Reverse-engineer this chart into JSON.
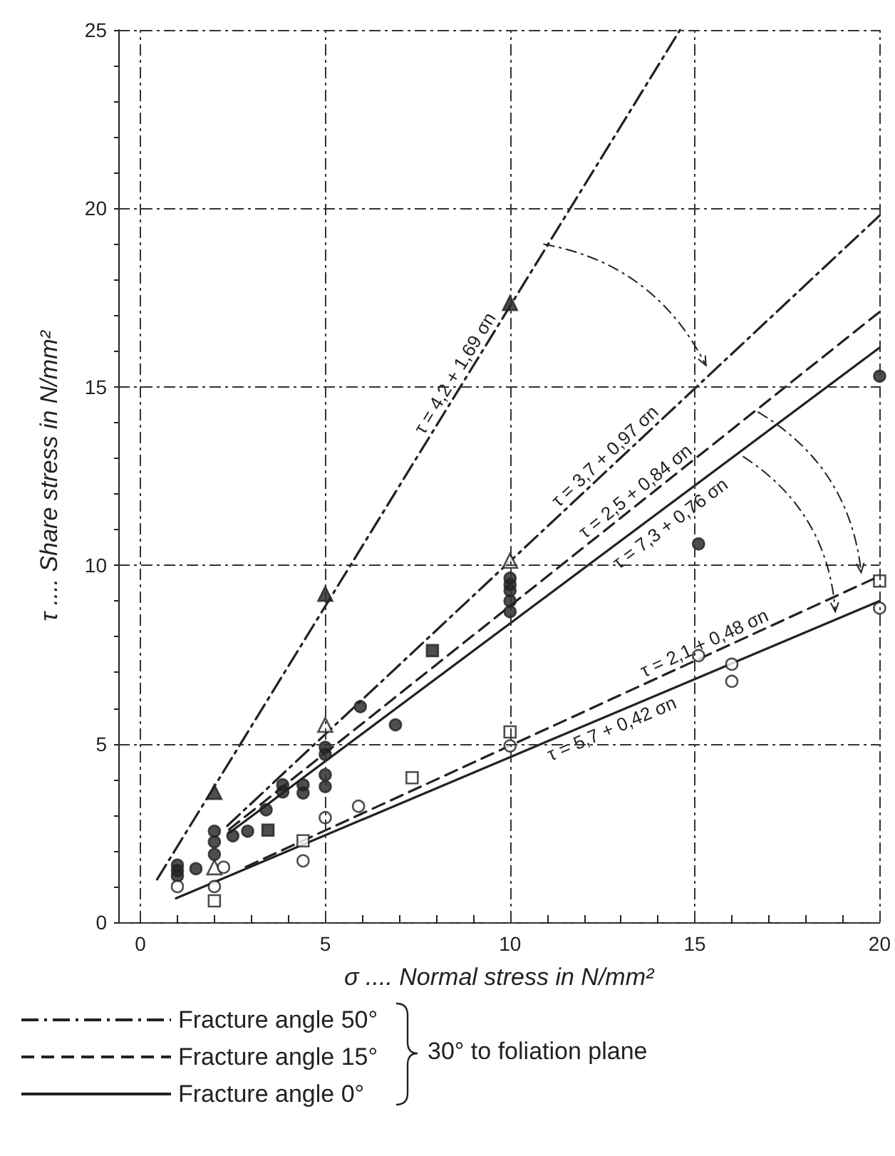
{
  "chart_data": {
    "type": "scatter",
    "xlabel": "σ .... Normal stress in N/mm²",
    "ylabel": "τ .... Share stress in N/mm²",
    "xlim": [
      -0.6,
      20
    ],
    "ylim": [
      0,
      25
    ],
    "xticks": [
      0,
      {
        "value": 1,
        "label": null
      },
      {
        "value": 2,
        "label": null
      },
      {
        "value": 3,
        "label": null
      },
      {
        "value": 4,
        "label": null
      },
      5,
      {
        "value": 6,
        "label": null
      },
      {
        "value": 7,
        "label": null
      },
      {
        "value": 8,
        "label": null
      },
      {
        "value": 9,
        "label": null
      },
      10,
      {
        "value": 11,
        "label": null
      },
      {
        "value": 12,
        "label": null
      },
      {
        "value": 13,
        "label": null
      },
      {
        "value": 14,
        "label": null
      },
      15,
      {
        "value": 16,
        "label": null
      },
      {
        "value": 17,
        "label": null
      },
      {
        "value": 18,
        "label": null
      },
      {
        "value": 19,
        "label": null
      },
      20
    ],
    "yticks": [
      0,
      {
        "value": 1,
        "label": null
      },
      {
        "value": 2,
        "label": null
      },
      {
        "value": 3,
        "label": null
      },
      {
        "value": 4,
        "label": null
      },
      5,
      {
        "value": 6,
        "label": null
      },
      {
        "value": 7,
        "label": null
      },
      {
        "value": 8,
        "label": null
      },
      {
        "value": 9,
        "label": null
      },
      10,
      {
        "value": 11,
        "label": null
      },
      {
        "value": 12,
        "label": null
      },
      {
        "value": 13,
        "label": null
      },
      {
        "value": 14,
        "label": null
      },
      15,
      {
        "value": 16,
        "label": null
      },
      {
        "value": 17,
        "label": null
      },
      {
        "value": 18,
        "label": null
      },
      {
        "value": 19,
        "label": null
      },
      20,
      {
        "value": 21,
        "label": null
      },
      {
        "value": 22,
        "label": null
      },
      {
        "value": 23,
        "label": null
      },
      {
        "value": 24,
        "label": null
      },
      25
    ],
    "grid": true,
    "legend": "bottom",
    "series": [
      {
        "type": "line",
        "name": "Fracture angle 50°",
        "color": "#222222",
        "line_style": "dashdot",
        "marker": "none",
        "x": [
          0.45,
          14.6
        ],
        "values": [
          1.2,
          25
        ]
      },
      {
        "type": "line",
        "color": "#222222",
        "line_style": "dashdot",
        "marker": "none",
        "x": [
          2.35,
          20
        ],
        "values": [
          2.7,
          19.8
        ]
      },
      {
        "type": "line",
        "name": "Fracture angle 15°",
        "color": "#222222",
        "line_style": "dashed",
        "marker": "none",
        "x": [
          2.4,
          20
        ],
        "values": [
          2.6,
          17.1
        ]
      },
      {
        "type": "line",
        "name": "Fracture angle 0°",
        "color": "#222222",
        "line_style": "solid",
        "marker": "none",
        "x": [
          2.4,
          20
        ],
        "values": [
          2.5,
          16.1
        ]
      },
      {
        "type": "line",
        "color": "#222222",
        "line_style": "dashed",
        "marker": "none",
        "x": [
          2.85,
          20
        ],
        "values": [
          1.55,
          9.7
        ]
      },
      {
        "type": "line",
        "color": "#222222",
        "line_style": "solid",
        "marker": "none",
        "x": [
          0.96,
          20
        ],
        "values": [
          0.67,
          9.0
        ]
      },
      {
        "color": "#222222",
        "marker": "triangle",
        "x": [
          2,
          5,
          10
        ],
        "values": [
          3.65,
          9.2,
          17.35
        ]
      },
      {
        "color": "#ffffff",
        "marker": "triangle",
        "x": [
          2,
          5,
          10
        ],
        "values": [
          1.54,
          5.53,
          10.13
        ]
      },
      {
        "color": "#222222",
        "marker": "circle",
        "x": [
          1,
          1,
          1,
          1.5,
          2,
          2,
          2,
          2.5,
          2.9,
          3.4,
          3.85,
          3.85,
          4.4,
          4.4,
          5,
          5,
          5,
          5,
          5.95,
          6.9,
          10,
          10,
          10,
          10,
          10,
          15.1,
          20
        ],
        "values": [
          1.6,
          1.45,
          1.3,
          1.5,
          2.55,
          2.25,
          1.9,
          2.42,
          2.55,
          3.15,
          3.85,
          3.65,
          3.85,
          3.62,
          4.9,
          4.7,
          4.13,
          3.8,
          6.04,
          5.53,
          9.64,
          9.46,
          9.29,
          9.0,
          8.7,
          10.6,
          15.3
        ]
      },
      {
        "color": "#ffffff",
        "marker": "circle",
        "x": [
          1,
          2,
          2.25,
          4.4,
          5,
          5.9,
          10,
          15.1,
          16,
          16,
          20
        ],
        "values": [
          1.0,
          1.0,
          1.54,
          1.72,
          2.93,
          3.25,
          4.94,
          7.47,
          7.23,
          6.75,
          8.8
        ]
      },
      {
        "color": "#222222",
        "marker": "square",
        "x": [
          3.45,
          7.9
        ],
        "values": [
          2.58,
          7.61
        ]
      },
      {
        "color": "#ffffff",
        "marker": "square",
        "x": [
          2,
          4.4,
          7.35,
          10,
          20
        ],
        "values": [
          0.6,
          2.28,
          4.05,
          5.33,
          9.56
        ]
      }
    ],
    "annotations": [
      {
        "text": "τ = 4,2 + 1,69 σn",
        "x": 8.8,
        "y": 15.2
      },
      {
        "text": "τ = 3,7 + 0,97 σn",
        "x": 12.8,
        "y": 12.8
      },
      {
        "text": "τ = 2,5 + 0,84 σn",
        "x": 13.6,
        "y": 11.8
      },
      {
        "text": "τ = 7,3 + 0,76 σn",
        "x": 14.1,
        "y": 11.5
      },
      {
        "text": "τ = 2,1 + 0,48 σn",
        "x": 15.4,
        "y": 7.5
      },
      {
        "text": "τ = 5,7 + 0,42 σn",
        "x": 12.6,
        "y": 5.8
      },
      "30° to foliation plane"
    ]
  }
}
